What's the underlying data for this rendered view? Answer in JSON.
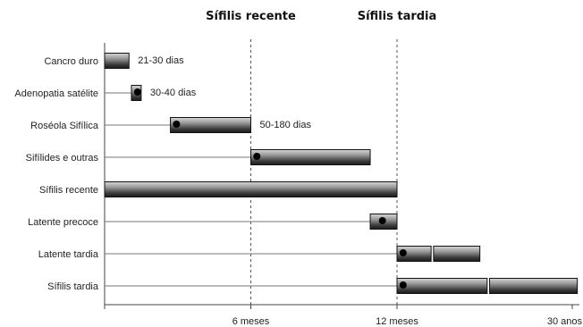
{
  "chart_data": {
    "type": "bar",
    "phase_titles": [
      {
        "text": "Sífilis recente",
        "at_label": "6 meses"
      },
      {
        "text": "Sífilis tardia",
        "at_label": "12 meses"
      }
    ],
    "x_ticks": [
      {
        "label": "6 meses",
        "months": 6
      },
      {
        "label": "12 meses",
        "months": 12
      },
      {
        "label": "30 anos",
        "months": 360
      }
    ],
    "rows": [
      {
        "label": "Cancro duro",
        "segments": [
          [
            0,
            1
          ]
        ],
        "marker": null,
        "annotation": "21-30 dias"
      },
      {
        "label": "Adenopatia satélite",
        "segments": [
          [
            1.1,
            1.5
          ]
        ],
        "marker": 1.35,
        "annotation": "30-40 dias"
      },
      {
        "label": "Roséola Sifílica",
        "segments": [
          [
            2.7,
            6
          ]
        ],
        "marker": 2.95,
        "annotation": "50-180 dias"
      },
      {
        "label": "Sifílides e outras",
        "segments": [
          [
            6,
            10.9
          ]
        ],
        "marker": 6.25,
        "annotation": ""
      },
      {
        "label": "Sífilis recente",
        "segments": [
          [
            0,
            12
          ]
        ],
        "marker": null,
        "annotation": ""
      },
      {
        "label": "Latente precoce",
        "segments": [
          [
            10.9,
            12
          ]
        ],
        "marker": 11.4,
        "annotation": ""
      },
      {
        "label": "Latente tardia",
        "segments": [
          [
            12,
            13.4
          ],
          [
            13.5,
            15.4
          ]
        ],
        "marker": 12.25,
        "annotation": ""
      },
      {
        "label": "Sífilis tardia",
        "segments": [
          [
            12,
            15.7
          ],
          [
            15.8,
            19.4
          ]
        ],
        "marker": 12.25,
        "annotation": ""
      }
    ]
  }
}
